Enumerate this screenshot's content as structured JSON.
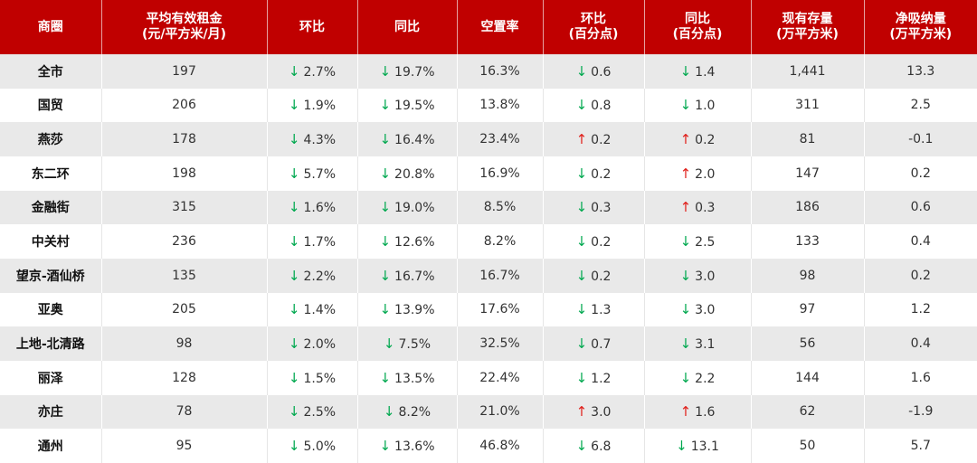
{
  "table": {
    "header": [
      "商圈",
      "平均有效租金\n(元/平方米/月)",
      "环比",
      "同比",
      "空置率",
      "环比\n(百分点)",
      "同比\n(百分点)",
      "现有存量\n(万平方米)",
      "净吸纳量\n(万平方米)"
    ],
    "arrow_colors": {
      "↓": "#00a84f",
      "↑": "#e0201b"
    },
    "rows": [
      [
        "全市",
        "197",
        [
          "↓",
          "2.7%"
        ],
        [
          "↓",
          "19.7%"
        ],
        "16.3%",
        [
          "↓",
          "0.6"
        ],
        [
          "↓",
          "1.4"
        ],
        "1,441",
        "13.3"
      ],
      [
        "国贸",
        "206",
        [
          "↓",
          "1.9%"
        ],
        [
          "↓",
          "19.5%"
        ],
        "13.8%",
        [
          "↓",
          "0.8"
        ],
        [
          "↓",
          "1.0"
        ],
        "311",
        "2.5"
      ],
      [
        "燕莎",
        "178",
        [
          "↓",
          "4.3%"
        ],
        [
          "↓",
          "16.4%"
        ],
        "23.4%",
        [
          "↑",
          "0.2"
        ],
        [
          "↑",
          "0.2"
        ],
        "81",
        "-0.1"
      ],
      [
        "东二环",
        "198",
        [
          "↓",
          "5.7%"
        ],
        [
          "↓",
          "20.8%"
        ],
        "16.9%",
        [
          "↓",
          "0.2"
        ],
        [
          "↑",
          "2.0"
        ],
        "147",
        "0.2"
      ],
      [
        "金融街",
        "315",
        [
          "↓",
          "1.6%"
        ],
        [
          "↓",
          "19.0%"
        ],
        "8.5%",
        [
          "↓",
          "0.3"
        ],
        [
          "↑",
          "0.3"
        ],
        "186",
        "0.6"
      ],
      [
        "中关村",
        "236",
        [
          "↓",
          "1.7%"
        ],
        [
          "↓",
          "12.6%"
        ],
        "8.2%",
        [
          "↓",
          "0.2"
        ],
        [
          "↓",
          "2.5"
        ],
        "133",
        "0.4"
      ],
      [
        "望京-酒仙桥",
        "135",
        [
          "↓",
          "2.2%"
        ],
        [
          "↓",
          "16.7%"
        ],
        "16.7%",
        [
          "↓",
          "0.2"
        ],
        [
          "↓",
          "3.0"
        ],
        "98",
        "0.2"
      ],
      [
        "亚奥",
        "205",
        [
          "↓",
          "1.4%"
        ],
        [
          "↓",
          "13.9%"
        ],
        "17.6%",
        [
          "↓",
          "1.3"
        ],
        [
          "↓",
          "3.0"
        ],
        "97",
        "1.2"
      ],
      [
        "上地-北清路",
        "98",
        [
          "↓",
          "2.0%"
        ],
        [
          "↓",
          "7.5%"
        ],
        "32.5%",
        [
          "↓",
          "0.7"
        ],
        [
          "↓",
          "3.1"
        ],
        "56",
        "0.4"
      ],
      [
        "丽泽",
        "128",
        [
          "↓",
          "1.5%"
        ],
        [
          "↓",
          "13.5%"
        ],
        "22.4%",
        [
          "↓",
          "1.2"
        ],
        [
          "↓",
          "2.2"
        ],
        "144",
        "1.6"
      ],
      [
        "亦庄",
        "78",
        [
          "↓",
          "2.5%"
        ],
        [
          "↓",
          "8.2%"
        ],
        "21.0%",
        [
          "↑",
          "3.0"
        ],
        [
          "↑",
          "1.6"
        ],
        "62",
        "-1.9"
      ],
      [
        "通州",
        "95",
        [
          "↓",
          "5.0%"
        ],
        [
          "↓",
          "13.6%"
        ],
        "46.8%",
        [
          "↓",
          "6.8"
        ],
        [
          "↓",
          "13.1"
        ],
        "50",
        "5.7"
      ]
    ]
  }
}
